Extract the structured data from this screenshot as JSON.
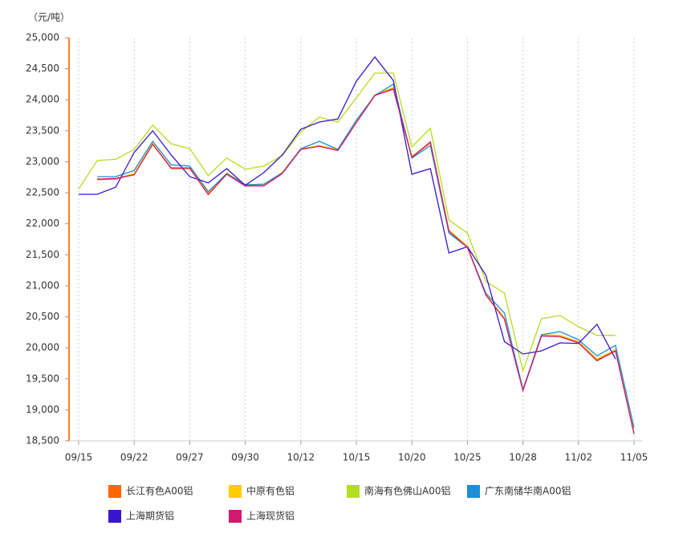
{
  "chart_data": {
    "type": "line",
    "y_label": "（元/吨）",
    "categories": [
      "09/15",
      null,
      null,
      "09/22",
      null,
      null,
      "09/27",
      null,
      null,
      "09/30",
      null,
      null,
      "10/12",
      null,
      null,
      "10/15",
      null,
      null,
      "10/20",
      null,
      null,
      "10/25",
      null,
      null,
      "10/28",
      null,
      null,
      "11/02",
      null,
      null,
      "11/05"
    ],
    "ylim": [
      18500,
      25000
    ],
    "yticks": [
      {
        "value": 18500,
        "label": "18,500"
      },
      {
        "value": 19000,
        "label": "19,000"
      },
      {
        "value": 19500,
        "label": "19,500"
      },
      {
        "value": 20000,
        "label": "20,000"
      },
      {
        "value": 20500,
        "label": "20,500"
      },
      {
        "value": 21000,
        "label": "21,000"
      },
      {
        "value": 21500,
        "label": "21,500"
      },
      {
        "value": 22000,
        "label": "22,000"
      },
      {
        "value": 22500,
        "label": "22,500"
      },
      {
        "value": 23000,
        "label": "23,000"
      },
      {
        "value": 23500,
        "label": "23,500"
      },
      {
        "value": 24000,
        "label": "24,000"
      },
      {
        "value": 24500,
        "label": "24,500"
      },
      {
        "value": 25000,
        "label": "25,000"
      }
    ],
    "grid": "x",
    "series": [
      {
        "name": "长江有色A00铝",
        "color": "#ff6600",
        "values": [
          null,
          22710,
          22720,
          22800,
          23290,
          22890,
          22890,
          22490,
          22810,
          22620,
          22620,
          22820,
          23200,
          23250,
          23190,
          23640,
          24070,
          24190,
          23080,
          23300,
          21890,
          21630,
          20860,
          20470,
          19320,
          20200,
          20190,
          20090,
          19810,
          19960,
          18620
        ]
      },
      {
        "name": "中原有色铝",
        "color": "#ffcc00",
        "values": [
          null,
          22720,
          22730,
          22810,
          23300,
          22900,
          22900,
          22500,
          22820,
          22630,
          22630,
          22830,
          23210,
          23260,
          23200,
          23650,
          24080,
          24200,
          23090,
          23310,
          21900,
          21640,
          20870,
          20480,
          19330,
          20210,
          20200,
          20100,
          19820,
          19970,
          18630
        ]
      },
      {
        "name": "南海有色佛山A00铝",
        "color": "#b5dd1f",
        "values": [
          22560,
          23020,
          23040,
          23200,
          23590,
          23290,
          23210,
          22780,
          23060,
          22880,
          22930,
          23100,
          23480,
          23720,
          23640,
          24030,
          24430,
          24430,
          23240,
          23540,
          22060,
          21850,
          21070,
          20880,
          19630,
          20470,
          20520,
          20340,
          20200,
          20200,
          null
        ]
      },
      {
        "name": "广东南储华南A00铝",
        "color": "#1d8fd4",
        "values": [
          null,
          22760,
          22760,
          22860,
          23330,
          22950,
          22930,
          22520,
          22810,
          22630,
          22640,
          22820,
          23210,
          23330,
          23200,
          23670,
          24070,
          24250,
          23060,
          23260,
          21850,
          21620,
          20880,
          20560,
          19330,
          20210,
          20260,
          20130,
          19870,
          20040,
          18710
        ]
      },
      {
        "name": "上海期货铝",
        "color": "#3a14cc",
        "values": [
          22475,
          22475,
          22590,
          23150,
          23500,
          23110,
          22760,
          22660,
          22890,
          22620,
          22825,
          23110,
          23525,
          23640,
          23690,
          24300,
          24690,
          24310,
          22800,
          22890,
          21530,
          21630,
          21170,
          20100,
          19900,
          19950,
          20080,
          20070,
          20380,
          19820,
          null
        ]
      },
      {
        "name": "上海现货铝",
        "color": "#d11a6e",
        "values": [
          null,
          22720,
          22730,
          22790,
          23280,
          22900,
          22900,
          22470,
          22800,
          22610,
          22610,
          22810,
          23200,
          23250,
          23180,
          23630,
          24070,
          24170,
          23070,
          23320,
          21880,
          21620,
          20850,
          20460,
          19310,
          20190,
          20180,
          20080,
          19790,
          19950,
          18610
        ]
      }
    ]
  }
}
